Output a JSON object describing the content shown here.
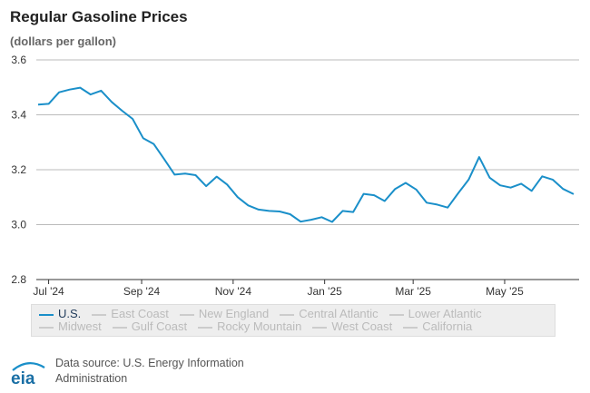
{
  "title": "Regular Gasoline Prices",
  "subtitle": "(dollars per gallon)",
  "colors": {
    "line": "#1a8fc9",
    "grid": "#bbbbbb",
    "text": "#333333",
    "logo": "#1a8fc9"
  },
  "legend": [
    {
      "label": "U.S.",
      "active": true
    },
    {
      "label": "East Coast",
      "active": false
    },
    {
      "label": "New England",
      "active": false
    },
    {
      "label": "Central Atlantic",
      "active": false
    },
    {
      "label": "Lower Atlantic",
      "active": false
    },
    {
      "label": "Midwest",
      "active": false
    },
    {
      "label": "Gulf Coast",
      "active": false
    },
    {
      "label": "Rocky Mountain",
      "active": false
    },
    {
      "label": "West Coast",
      "active": false
    },
    {
      "label": "California",
      "active": false
    }
  ],
  "footer": {
    "logo_text": "eia",
    "source": "Data source: U.S. Energy Information Administration"
  },
  "chart_data": {
    "type": "line",
    "title": "Regular Gasoline Prices",
    "ylabel": "(dollars per gallon)",
    "xlabel": "",
    "ylim": [
      2.8,
      3.6
    ],
    "yticks": [
      "2.8",
      "3.0",
      "3.2",
      "3.4",
      "3.6"
    ],
    "xticks": [
      "Jul '24",
      "Sep '24",
      "Nov '24",
      "Jan '25",
      "Mar '25",
      "May '25"
    ],
    "grid": true,
    "legend_position": "bottom",
    "x": [
      "2024-06-24",
      "2024-07-01",
      "2024-07-08",
      "2024-07-15",
      "2024-07-22",
      "2024-07-29",
      "2024-08-05",
      "2024-08-12",
      "2024-08-19",
      "2024-08-26",
      "2024-09-02",
      "2024-09-09",
      "2024-09-16",
      "2024-09-23",
      "2024-09-30",
      "2024-10-07",
      "2024-10-14",
      "2024-10-21",
      "2024-10-28",
      "2024-11-04",
      "2024-11-11",
      "2024-11-18",
      "2024-11-25",
      "2024-12-02",
      "2024-12-09",
      "2024-12-16",
      "2024-12-23",
      "2024-12-30",
      "2025-01-06",
      "2025-01-13",
      "2025-01-20",
      "2025-01-27",
      "2025-02-03",
      "2025-02-10",
      "2025-02-17",
      "2025-02-24",
      "2025-03-03",
      "2025-03-10",
      "2025-03-17",
      "2025-03-24",
      "2025-03-31",
      "2025-04-07",
      "2025-04-14",
      "2025-04-21",
      "2025-04-28",
      "2025-05-05",
      "2025-05-12",
      "2025-05-19",
      "2025-05-26",
      "2025-06-02",
      "2025-06-09",
      "2025-06-16"
    ],
    "series": [
      {
        "name": "U.S.",
        "values": [
          3.437,
          3.44,
          3.482,
          3.492,
          3.499,
          3.474,
          3.488,
          3.447,
          3.415,
          3.385,
          3.315,
          3.294,
          3.239,
          3.182,
          3.186,
          3.18,
          3.14,
          3.175,
          3.146,
          3.1,
          3.07,
          3.055,
          3.05,
          3.048,
          3.038,
          3.011,
          3.018,
          3.027,
          3.01,
          3.05,
          3.046,
          3.112,
          3.107,
          3.086,
          3.13,
          3.152,
          3.128,
          3.08,
          3.073,
          3.062,
          3.114,
          3.164,
          3.246,
          3.171,
          3.143,
          3.135,
          3.149,
          3.123,
          3.176,
          3.164,
          3.13,
          3.111
        ]
      }
    ]
  }
}
